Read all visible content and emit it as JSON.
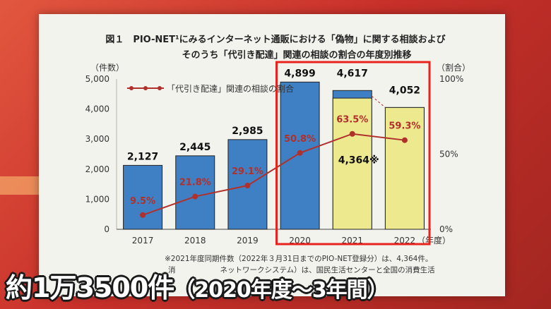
{
  "figure": {
    "title_line1": "図１　PIO-NET¹にみるインターネット通販における「偽物」に関する相談および",
    "title_line2": "そのうち「代引き配達」関連の相談の割合の年度別推移",
    "left_unit": "（件数）",
    "right_unit": "（割合）",
    "x_unit": "（年度）",
    "legend": "「代引き配達」関連の相談の割合",
    "note": "※2021年度同期件数（2022年３月31日までのPIO-NET登録分）は、4,364件。",
    "footnote_fragment": "消　　　　　　ネットワークシステム）は、国民生活センターと全国の消費生活"
  },
  "caption": {
    "main": "約1万3500件",
    "sub": "（2020年度〜3年間）"
  },
  "colors": {
    "bar_blue": "#3f80c4",
    "bar_yellow": "#ece98f",
    "line_red": "#b0302b",
    "highlight_box": "#e8231e"
  },
  "chart_data": {
    "type": "bar",
    "categories": [
      "2017",
      "2018",
      "2019",
      "2020",
      "2021",
      "2022"
    ],
    "series": [
      {
        "values": [
          2127,
          2445,
          2985,
          4899,
          4617,
          4052
        ]
      },
      {
        "name": "「代引き配達」関連の相談の割合",
        "type": "line",
        "axis": "right",
        "values": [
          9.5,
          21.8,
          29.1,
          50.8,
          63.5,
          59.3
        ]
      }
    ],
    "sub_bar": {
      "category": "2021",
      "value": 4364,
      "label": "4,364※"
    },
    "bar_labels": [
      "2,127",
      "2,445",
      "2,985",
      "4,899",
      "4,617",
      "4,052"
    ],
    "pct_labels": [
      "9.5%",
      "21.8%",
      "29.1%",
      "50.8%",
      "63.5%",
      "59.3%"
    ],
    "yticks_left": [
      "0",
      "1,000",
      "2,000",
      "3,000",
      "4,000",
      "5,000"
    ],
    "yticks_right": [
      "0%",
      "50%",
      "100%"
    ],
    "ylim_left": [
      0,
      5000
    ],
    "ylim_right": [
      0,
      100
    ],
    "highlight_categories": [
      "2020",
      "2021",
      "2022"
    ],
    "yellow_bars": [
      "2021",
      "2022"
    ]
  }
}
